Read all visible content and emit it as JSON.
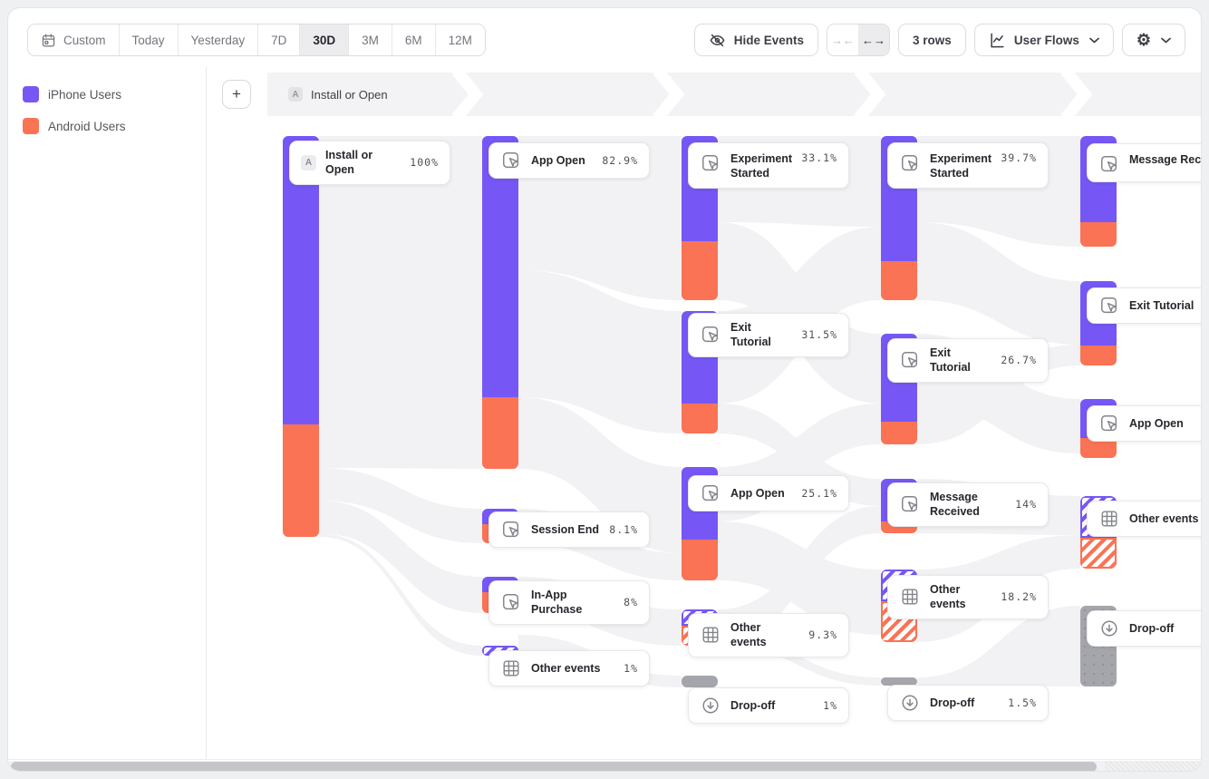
{
  "toolbar": {
    "date_ranges": [
      {
        "label": "Custom",
        "icon": "calendar-icon",
        "active": false
      },
      {
        "label": "Today",
        "active": false
      },
      {
        "label": "Yesterday",
        "active": false
      },
      {
        "label": "7D",
        "active": false
      },
      {
        "label": "30D",
        "active": true
      },
      {
        "label": "3M",
        "active": false
      },
      {
        "label": "6M",
        "active": false
      },
      {
        "label": "12M",
        "active": false
      }
    ],
    "hide_events_label": "Hide Events",
    "collapse_icon": "→←",
    "expand_icon": "←→",
    "rows_label": "3 rows",
    "view_label": "User Flows",
    "gear_glyph": "⚙"
  },
  "legend": [
    {
      "label": "iPhone Users",
      "color": "#7657f5"
    },
    {
      "label": "Android Users",
      "color": "#fa7355"
    }
  ],
  "flow_header": {
    "add_button": "+",
    "step_badge": "A",
    "step_label": "Install or Open"
  },
  "colors": {
    "purple": "#7657f5",
    "orange": "#fa7355",
    "dropoff_gray": "#a5a6ab",
    "ribbon_gray": "#f2f2f4",
    "band_gray": "#f3f3f5"
  },
  "chart_data": {
    "type": "sankey",
    "note": "User Flows sankey; percentages of users per step",
    "columns": [
      [
        {
          "label": "Install or Open",
          "pct": "100%",
          "badge": "A",
          "kind": "root"
        }
      ],
      [
        {
          "label": "App Open",
          "pct": "82.9%",
          "icon": "click-event-icon",
          "kind": "event"
        },
        {
          "label": "Session End",
          "pct": "8.1%",
          "icon": "click-event-icon",
          "kind": "event"
        },
        {
          "label": "In-App Purchase",
          "pct": "8%",
          "icon": "click-event-icon",
          "kind": "event"
        },
        {
          "label": "Other events",
          "pct": "1%",
          "icon": "events-grid-icon",
          "kind": "other"
        }
      ],
      [
        {
          "label": "Experiment Started",
          "pct": "33.1%",
          "icon": "click-event-icon",
          "kind": "event"
        },
        {
          "label": "Exit Tutorial",
          "pct": "31.5%",
          "icon": "click-event-icon",
          "kind": "event"
        },
        {
          "label": "App Open",
          "pct": "25.1%",
          "icon": "click-event-icon",
          "kind": "event"
        },
        {
          "label": "Other events",
          "pct": "9.3%",
          "icon": "events-grid-icon",
          "kind": "other"
        },
        {
          "label": "Drop-off",
          "pct": "1%",
          "icon": "drop-off-icon",
          "kind": "dropoff"
        }
      ],
      [
        {
          "label": "Experiment Started",
          "pct": "39.7%",
          "icon": "click-event-icon",
          "kind": "event"
        },
        {
          "label": "Exit Tutorial",
          "pct": "26.7%",
          "icon": "click-event-icon",
          "kind": "event"
        },
        {
          "label": "Message Received",
          "pct": "14%",
          "icon": "click-event-icon",
          "kind": "event"
        },
        {
          "label": "Other events",
          "pct": "18.2%",
          "icon": "events-grid-icon",
          "kind": "other"
        },
        {
          "label": "Drop-off",
          "pct": "1.5%",
          "icon": "drop-off-icon",
          "kind": "dropoff"
        }
      ],
      [
        {
          "label": "Message Received",
          "icon": "click-event-icon",
          "kind": "event"
        },
        {
          "label": "Exit Tutorial",
          "icon": "click-event-icon",
          "kind": "event"
        },
        {
          "label": "App Open",
          "icon": "click-event-icon",
          "kind": "event"
        },
        {
          "label": "Other events",
          "icon": "events-grid-icon",
          "kind": "other"
        },
        {
          "label": "Drop-off",
          "icon": "drop-off-icon",
          "kind": "dropoff"
        }
      ]
    ]
  }
}
